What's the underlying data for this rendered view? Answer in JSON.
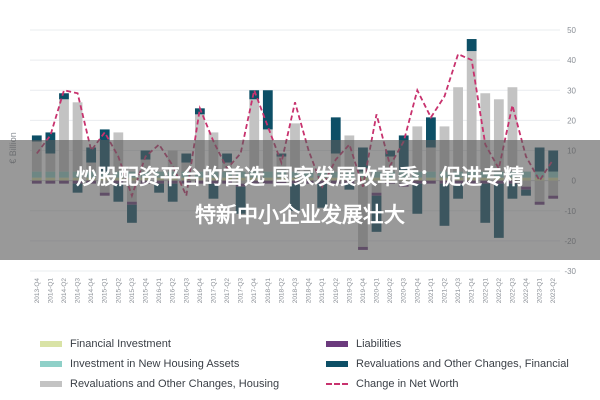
{
  "chart_data": {
    "type": "bar",
    "ylabel": "€ Billion",
    "ylim": [
      -30,
      50
    ],
    "yticks": [
      -30,
      -20,
      -10,
      0,
      10,
      20,
      30,
      40,
      50
    ],
    "categories": [
      "2013-Q4",
      "2014-Q1",
      "2014-Q2",
      "2014-Q3",
      "2014-Q4",
      "2015-Q1",
      "2015-Q2",
      "2015-Q3",
      "2015-Q4",
      "2016-Q1",
      "2016-Q2",
      "2016-Q3",
      "2016-Q4",
      "2017-Q1",
      "2017-Q2",
      "2017-Q3",
      "2017-Q4",
      "2018-Q1",
      "2018-Q2",
      "2018-Q3",
      "2018-Q4",
      "2019-Q1",
      "2019-Q2",
      "2019-Q3",
      "2019-Q4",
      "2020-Q1",
      "2020-Q2",
      "2020-Q3",
      "2020-Q4",
      "2021-Q1",
      "2021-Q2",
      "2021-Q3",
      "2021-Q4",
      "2022-Q1",
      "2022-Q2",
      "2022-Q3",
      "2022-Q4",
      "2023-Q1",
      "2023-Q2"
    ],
    "series": [
      {
        "name": "Financial Investment",
        "color": "#d9e3a6",
        "values": [
          1,
          1,
          1,
          1,
          1,
          1,
          1,
          1,
          1,
          1,
          1,
          1,
          1,
          1,
          1,
          1,
          1,
          1,
          1,
          1,
          1,
          1,
          1,
          1,
          1,
          1,
          1,
          1,
          1,
          1,
          1,
          1,
          1,
          1,
          1,
          1,
          1,
          1,
          1
        ]
      },
      {
        "name": "Investment in New Housing Assets",
        "color": "#8fd0c8",
        "values": [
          2,
          2,
          2,
          2,
          2,
          2,
          2,
          2,
          2,
          2,
          2,
          2,
          2,
          2,
          2,
          2,
          2,
          2,
          2,
          2,
          2,
          2,
          2,
          2,
          2,
          2,
          2,
          2,
          2,
          2,
          2,
          2,
          2,
          2,
          2,
          2,
          2,
          2,
          2
        ]
      },
      {
        "name": "Revaluations and Other Changes, Housing",
        "color": "#c3c3c3",
        "values": [
          10,
          6,
          24,
          23,
          3,
          -4,
          13,
          -7,
          4,
          0,
          7,
          3,
          19,
          13,
          3,
          -1,
          24,
          14,
          5,
          16,
          1,
          0,
          6,
          12,
          -22,
          -4,
          5,
          -1,
          15,
          8,
          15,
          28,
          40,
          26,
          24,
          28,
          -2,
          -7,
          -5
        ]
      },
      {
        "name": "Liabilities",
        "color": "#6b3a7d",
        "values": [
          -1,
          -1,
          -1,
          -1,
          -1,
          -1,
          -1,
          -1,
          -1,
          -1,
          -1,
          -1,
          -1,
          -1,
          -1,
          -1,
          -1,
          -1,
          -1,
          -1,
          -1,
          -1,
          -1,
          -1,
          -1,
          -1,
          -1,
          -1,
          -1,
          -1,
          -1,
          -1,
          -1,
          -1,
          -1,
          -1,
          -1,
          -1,
          -1
        ]
      },
      {
        "name": "Revaluations and Other Changes, Financial",
        "color": "#0d4f66",
        "values": [
          2,
          7,
          2,
          -3,
          5,
          14,
          -6,
          -6,
          3,
          -3,
          -6,
          3,
          2,
          -5,
          3,
          -9,
          3,
          13,
          1,
          -9,
          0,
          -8,
          12,
          -2,
          8,
          -12,
          2,
          12,
          -10,
          10,
          -14,
          -5,
          4,
          -13,
          -18,
          -5,
          -2,
          8,
          7
        ]
      },
      {
        "name": "Change in Net Worth",
        "color": "#c8326e",
        "values": [
          9,
          15,
          30,
          29,
          10,
          16,
          8,
          -5,
          8,
          12,
          5,
          -5,
          24,
          13,
          4,
          9,
          30,
          18,
          6,
          26,
          10,
          -2,
          7,
          12,
          -2,
          22,
          5,
          13,
          30,
          21,
          28,
          42,
          40,
          12,
          4,
          25,
          8,
          0,
          7
        ]
      }
    ]
  },
  "banner": {
    "line1": "炒股配资平台的首选 国家发展改革委：促进专精",
    "line2": "特新中小企业发展壮大"
  }
}
